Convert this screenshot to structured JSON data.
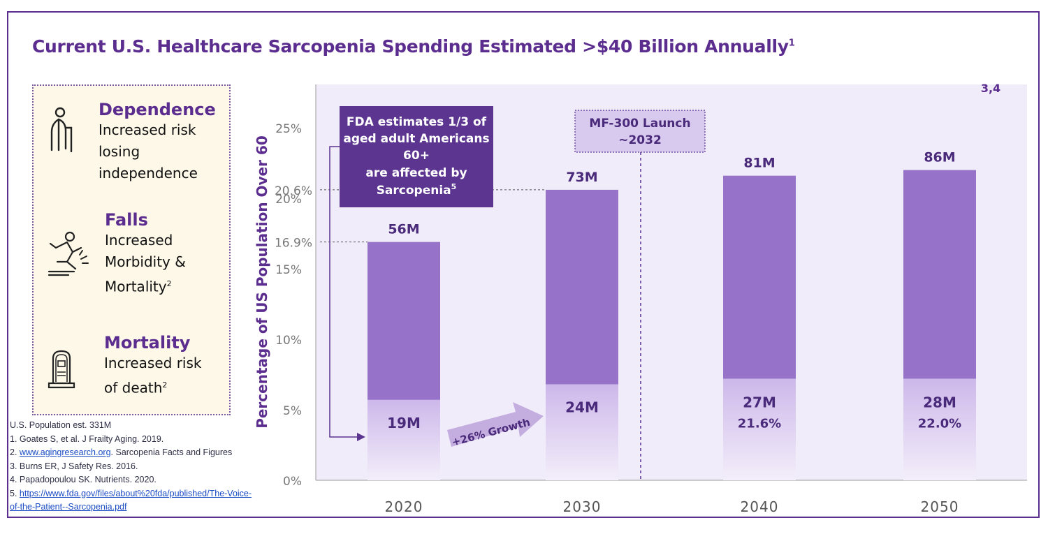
{
  "title": {
    "text": "Current U.S. Healthcare Sarcopenia Spending Estimated >$40 Billion Annually",
    "sup": "1"
  },
  "risks": [
    {
      "heading": "Dependence",
      "lines": [
        "Increased risk",
        "losing",
        "independence"
      ],
      "sup": "",
      "icon": "elderly-person-cane-icon"
    },
    {
      "heading": "Falls",
      "lines": [
        "Increased",
        "Morbidity &",
        "Mortality"
      ],
      "sup": "2",
      "icon": "person-slipping-icon"
    },
    {
      "heading": "Mortality",
      "lines": [
        "Increased risk",
        "of death"
      ],
      "sup": "2",
      "icon": "tombstone-icon"
    }
  ],
  "footnotes": {
    "population": "U.S. Population est. 331M",
    "f1": "1. Goates S, et al. J Frailty Aging. 2019.",
    "f2_prefix": "2. ",
    "f2_link": "www.agingresearch.org",
    "f2_suffix": ". Sarcopenia Facts and Figures",
    "f3": "3. Burns ER, J Safety Res. 2016.",
    "f4": "4. Papadopoulou SK. Nutrients. 2020.",
    "f5_prefix": "5. ",
    "f5_link_line1": "https://www.fda.gov/files/about%20fda/published/The-Voice-",
    "f5_link_line2": "of-the-Patient--Sarcopenia.pdf"
  },
  "chart_data": {
    "type": "bar",
    "ylabel": "Percentage of US Population Over 60",
    "ylim": [
      0,
      28
    ],
    "yticks": [
      "0%",
      "5%",
      "10%",
      "15%",
      "20%",
      "25%"
    ],
    "ytick_values": [
      0,
      5,
      10,
      15,
      20,
      25
    ],
    "categories": [
      "2020",
      "2030",
      "2040",
      "2050"
    ],
    "series": [
      {
        "values": [
          16.9,
          20.6,
          21.6,
          22.0
        ],
        "labels": [
          "56M",
          "73M",
          "81M",
          "86M"
        ]
      },
      {
        "values": [
          5.7,
          6.8,
          7.2,
          7.2
        ],
        "labels": [
          "19M",
          "24M",
          "27M",
          "28M"
        ]
      }
    ],
    "ref_lines": [
      {
        "value": 16.9,
        "label": "16.9%"
      },
      {
        "value": 20.6,
        "label": "20.6%"
      }
    ],
    "bottom_pct_labels": [
      "",
      "",
      "21.6%",
      "22.0%"
    ],
    "superscript_ref": "3,4",
    "callout": {
      "lines": [
        "FDA estimates 1/3 of",
        "aged adult Americans",
        "60+",
        "are affected by",
        "Sarcopenia"
      ],
      "sup": "5"
    },
    "launch": {
      "lines": [
        "MF-300 Launch",
        "~2032"
      ]
    },
    "growth_label": "+26% Growth",
    "colors": {
      "bar_top": "#9673c8",
      "bar_bottom_top": "#d0bdea",
      "plot_bg": "#f1ecf9",
      "callout": "#5b3590",
      "title": "#5b2d8e"
    }
  }
}
